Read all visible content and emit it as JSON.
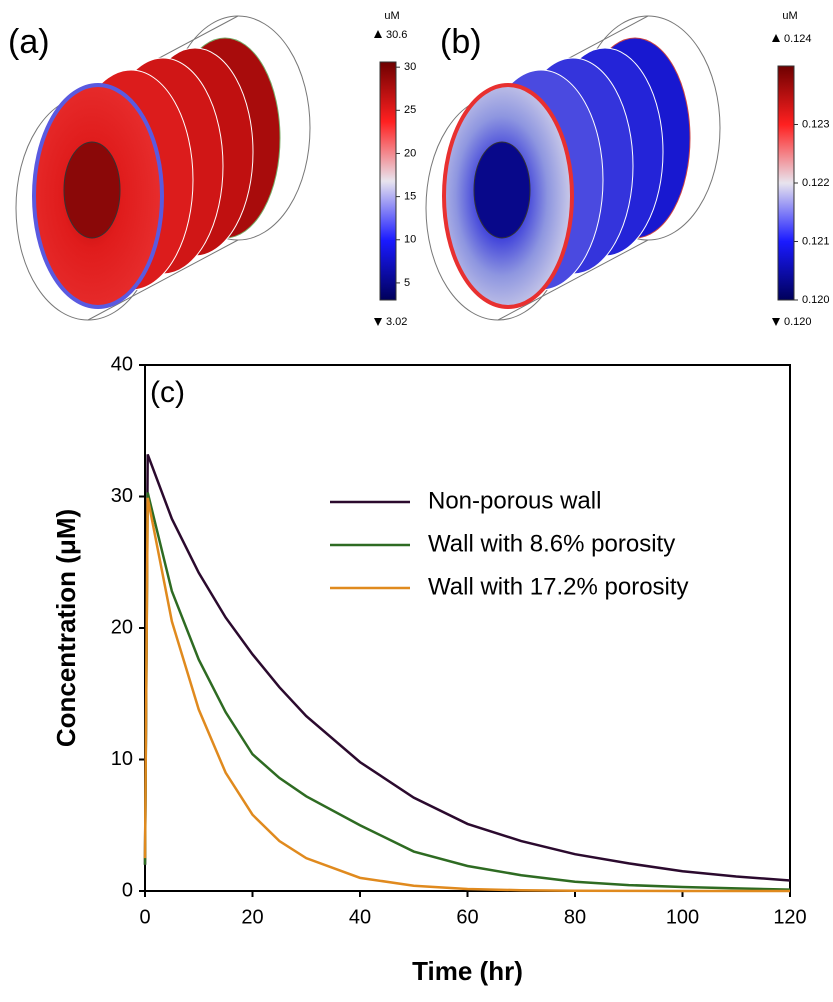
{
  "chart_data": [
    {
      "type": "surface",
      "title": "(a)",
      "unit": "uM",
      "clim": [
        3.02,
        30.6
      ],
      "cticks": [
        5,
        10,
        15,
        20,
        25,
        30
      ]
    },
    {
      "type": "surface",
      "title": "(b)",
      "unit": "uM",
      "clim": [
        {
          "value": 0.12,
          "label": "0.120"
        },
        0.124
      ],
      "cticks": [
        {
          "value": 0.12,
          "label": "0.120"
        },
        0.121,
        0.122,
        0.123
      ]
    },
    {
      "type": "line",
      "title": "(c)",
      "x_label": "Time (hr)",
      "y_label": "Concentration (μM)",
      "xlim": [
        0,
        120
      ],
      "xticks": [
        0,
        20,
        40,
        60,
        80,
        100,
        120
      ],
      "ylim": [
        0,
        40
      ],
      "yticks": [
        0,
        10,
        20,
        30,
        40
      ],
      "x": [
        0,
        0.5,
        5,
        10,
        15,
        20,
        25,
        30,
        40,
        50,
        60,
        70,
        80,
        90,
        100,
        110,
        120
      ],
      "series": [
        {
          "name": "Non-porous wall",
          "color": "#2b0a2e",
          "values": [
            2,
            33.2,
            28.3,
            24.2,
            20.8,
            18,
            15.5,
            13.3,
            9.8,
            7.1,
            5.1,
            3.8,
            2.8,
            2.1,
            1.5,
            1.1,
            0.8
          ]
        },
        {
          "name": "Wall with 8.6% porosity",
          "color": "#2e6b22",
          "values": [
            2,
            30.3,
            22.8,
            17.6,
            13.6,
            10.4,
            8.6,
            7.2,
            5.0,
            3.0,
            1.9,
            1.2,
            0.7,
            0.45,
            0.3,
            0.2,
            0.1
          ]
        },
        {
          "name": "Wall with 17.2% porosity",
          "color": "#e08a1e",
          "values": [
            2.5,
            29.9,
            20.5,
            13.8,
            9,
            5.8,
            3.8,
            2.5,
            1.0,
            0.4,
            0.15,
            0.06,
            0.02,
            0.01,
            0,
            0,
            0
          ]
        }
      ]
    }
  ]
}
